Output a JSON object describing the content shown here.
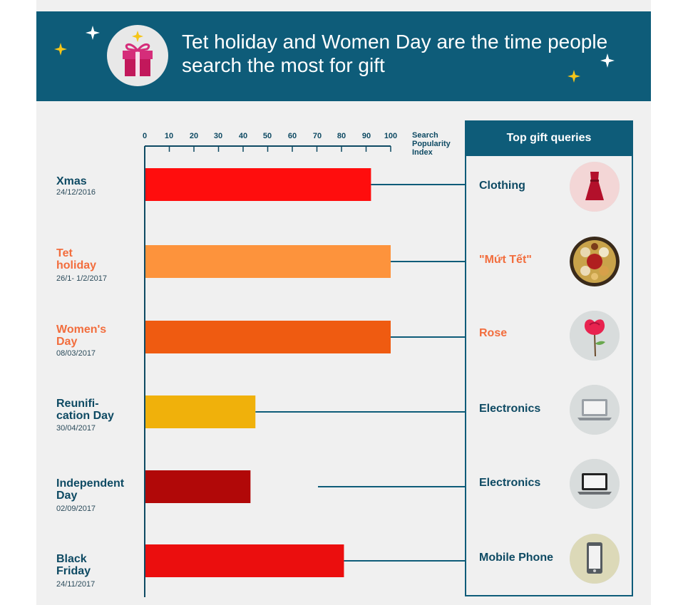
{
  "header": {
    "title": "Tet holiday and Women Day are the time people search the most for gift",
    "icon": "gift-icon"
  },
  "chart_data": {
    "type": "bar",
    "orientation": "horizontal",
    "title": "Tet holiday and Women Day are the time people search the most for gift",
    "xlabel": "Search Popularity Index",
    "xlim": [
      0,
      100
    ],
    "x_ticks": [
      "0",
      "10",
      "20",
      "30",
      "40",
      "50",
      "60",
      "70",
      "80",
      "90",
      "100"
    ],
    "grid": false,
    "categories": [
      {
        "name": "Xmas",
        "date": "24/12/2016",
        "value": 92,
        "color": "#ff0d0d",
        "label_color": "#0e4a63",
        "query": "Clothing",
        "query_color": "#0e4a63",
        "query_icon": "dress-icon"
      },
      {
        "name": "Tet holiday",
        "date": "26/1- 1/2/2017",
        "value": 100,
        "color": "#fd933c",
        "label_color": "#f26d3d",
        "query": "\"Mứt Tết\"",
        "query_color": "#f26d3d",
        "query_icon": "candied-fruit-tray-icon"
      },
      {
        "name": "Women's Day",
        "date": "08/03/2017",
        "value": 100,
        "color": "#ef5b11",
        "label_color": "#f26d3d",
        "query": "Rose",
        "query_color": "#f26d3d",
        "query_icon": "rose-icon"
      },
      {
        "name": "Reunification Day",
        "date": "30/04/2017",
        "value": 45,
        "color": "#f0b10b",
        "label_color": "#0e4a63",
        "query": "Electronics",
        "query_color": "#0e4a63",
        "query_icon": "laptop-icon"
      },
      {
        "name": "Independent Day",
        "date": "02/09/2017",
        "value": 43,
        "color": "#b10808",
        "label_color": "#0e4a63",
        "query": "Electronics",
        "query_color": "#0e4a63",
        "query_icon": "laptop-icon"
      },
      {
        "name": "Black Friday",
        "date": "24/11/2017",
        "value": 81,
        "color": "#eb0e0e",
        "label_color": "#0e4a63",
        "query": "Mobile Phone",
        "query_color": "#0e4a63",
        "query_icon": "mobile-phone-icon"
      }
    ],
    "side_panel_title": "Top gift queries"
  },
  "labels": {
    "xmas": "Xmas",
    "tet_1": "Tet",
    "tet_2": "holiday",
    "womens_1": "Women's",
    "womens_2": "Day",
    "reunif_1": "Reunifi-",
    "reunif_2": "cation Day",
    "indep_1": "Independent",
    "indep_2": "Day",
    "black_1": "Black",
    "black_2": "Friday",
    "unit_1": "Search",
    "unit_2": "Popularity",
    "unit_3": "Index"
  },
  "colors": {
    "navy": "#0e5c79",
    "dark_text": "#0e4a63",
    "orange_text": "#f26d3d"
  }
}
